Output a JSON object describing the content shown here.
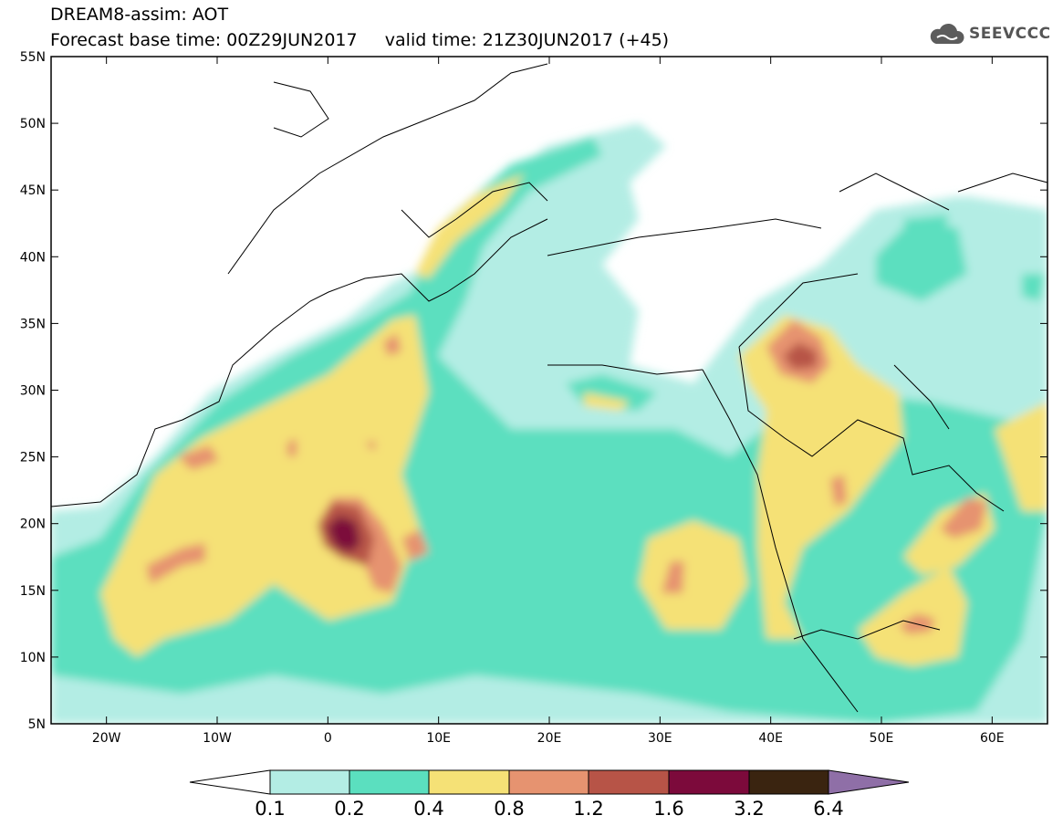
{
  "title": {
    "line1": "DREAM8-assim: AOT",
    "line2": "Forecast base time: 00Z29JUN2017     valid time: 21Z30JUN2017 (+45)"
  },
  "logo": {
    "icon": "cloud-logo-icon",
    "text": "SEEVCCC"
  },
  "map": {
    "lat_labels": [
      "55N",
      "50N",
      "45N",
      "40N",
      "35N",
      "30N",
      "25N",
      "20N",
      "15N",
      "10N",
      "5N"
    ],
    "lon_labels": [
      "20W",
      "10W",
      "0",
      "10E",
      "20E",
      "30E",
      "40E",
      "50E",
      "60E"
    ],
    "lat_values": [
      55,
      50,
      45,
      40,
      35,
      30,
      25,
      20,
      15,
      10,
      5
    ],
    "lon_values": [
      -20,
      -10,
      0,
      10,
      20,
      30,
      40,
      50,
      60
    ],
    "extent": {
      "lon_min": -25,
      "lon_max": 65,
      "lat_min": 5,
      "lat_max": 55
    }
  },
  "colorbar": {
    "labels": [
      "0.1",
      "0.2",
      "0.4",
      "0.8",
      "1.2",
      "1.6",
      "3.2",
      "6.4"
    ],
    "colors": {
      "below": "#ffffff",
      "c1": "#b3ede4",
      "c2": "#5bdfbf",
      "c3": "#f5e176",
      "c4": "#e69370",
      "c5": "#b75447",
      "c6": "#7c0a3b",
      "c7": "#3a2410",
      "above": "#8f6fa7"
    }
  }
}
